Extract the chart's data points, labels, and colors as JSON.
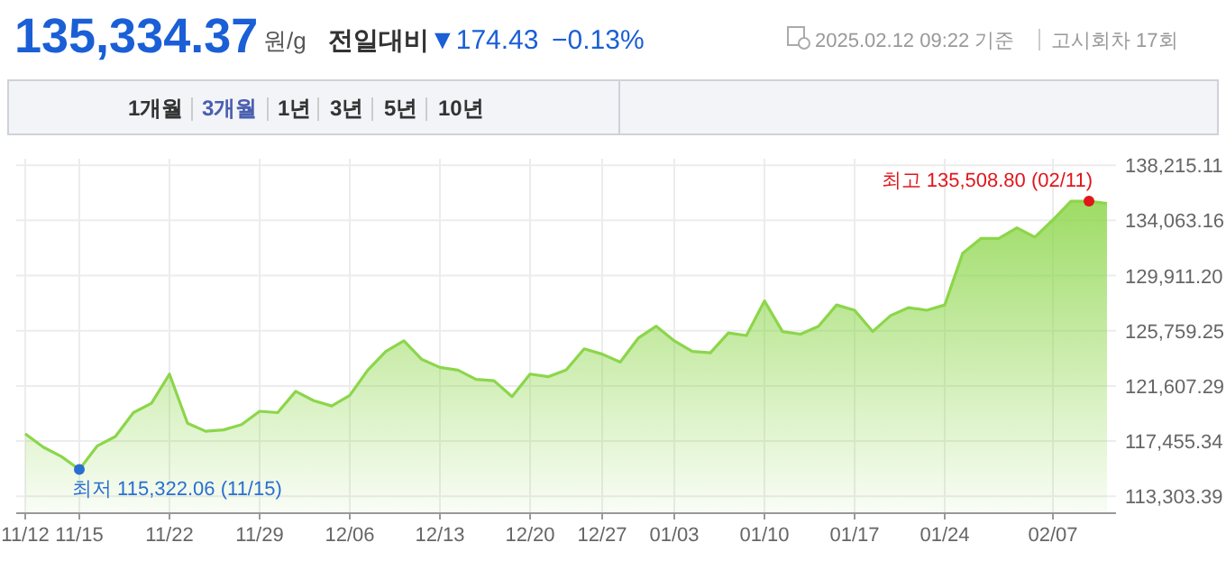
{
  "chart_data": {
    "type": "area",
    "title": "135,334.37",
    "annotations": [
      "원/g",
      "전일대비",
      "▼174.43",
      "−0.13%",
      "2025.02.12 09:22 기준",
      "고시회차 17회",
      "1개월",
      "3개월",
      "1년",
      "3년",
      "5년",
      "10년",
      {
        "text": "최저 115,322.06 (11/15)",
        "x": "11/15",
        "y": 115322.06
      },
      "최고 135,508.80 (02/11)"
    ],
    "categories": [
      "11/12",
      null,
      null,
      "11/15",
      null,
      null,
      null,
      null,
      "11/22",
      null,
      null,
      null,
      null,
      "11/29",
      null,
      null,
      null,
      null,
      "12/06",
      null,
      null,
      null,
      null,
      "12/13",
      null,
      null,
      null,
      null,
      "12/20",
      null,
      null,
      null,
      "12/27",
      null,
      null,
      null,
      "01/03",
      null,
      null,
      null,
      null,
      "01/10",
      null,
      null,
      null,
      null,
      "01/17",
      null,
      null,
      null,
      null,
      "01/24",
      null,
      null,
      null,
      null,
      null,
      "02/07",
      null,
      null,
      null
    ],
    "values": [
      118000,
      117000,
      116300,
      115322.06,
      117100,
      117800,
      119600,
      120300,
      122500,
      118800,
      118200,
      118300,
      118700,
      119700,
      119600,
      121200,
      120500,
      120100,
      120900,
      122800,
      124200,
      125000,
      123600,
      123000,
      122800,
      122100,
      122000,
      120800,
      122500,
      122300,
      122800,
      124400,
      124000,
      123400,
      125200,
      126100,
      125000,
      124200,
      124100,
      125600,
      125400,
      128000,
      125700,
      125500,
      126100,
      127700,
      127300,
      125700,
      126900,
      127500,
      127300,
      127700,
      131600,
      132700,
      132700,
      133500,
      132800,
      134100,
      135500,
      135508.8,
      135334.37
    ],
    "color": "#8cd64a",
    "ylim": [
      112100,
      138700
    ],
    "yticks": [
      {
        "value": 113303.39,
        "label": "113,303.39"
      },
      {
        "value": 117455.34,
        "label": "117,455.34"
      },
      {
        "value": 121607.29,
        "label": "121,607.29"
      },
      {
        "value": 125759.25,
        "label": "125,759.25"
      },
      {
        "value": 129911.2,
        "label": "129,911.20"
      },
      {
        "value": 134063.16,
        "label": "134,063.16"
      },
      {
        "value": 138215.11,
        "label": "138,215.11"
      }
    ],
    "grid": true
  }
}
